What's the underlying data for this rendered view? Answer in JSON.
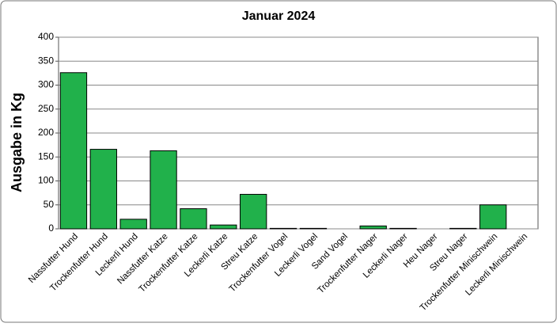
{
  "chart_data": {
    "type": "bar",
    "title": "Januar 2024",
    "y_label": "Ausgabe in Kg",
    "categories": [
      "Nassfutter Hund",
      "Trockenfutter Hund",
      "Leckerli Hund",
      "Nassfutter Katze",
      "Trockenfutter Katze",
      "Leckerli Katze",
      "Streu Katze",
      "Trockenfutter Vogel",
      "Leckerli Vogel",
      "Sand Vogel",
      "Trockenfutter Nager",
      "Leckerli Nager",
      "Heu Nager",
      "Streu Nager",
      "Trockenfutter Minischwein",
      "Leckerli Minischwein"
    ],
    "values": [
      326,
      166,
      20,
      163,
      42,
      8,
      72,
      1,
      1,
      0,
      6,
      1,
      0,
      1,
      50,
      0
    ],
    "color": "#21b14b",
    "ylim": [
      0,
      400
    ],
    "yticks": [
      0,
      50,
      100,
      150,
      200,
      250,
      300,
      350,
      400
    ],
    "grid": true
  }
}
